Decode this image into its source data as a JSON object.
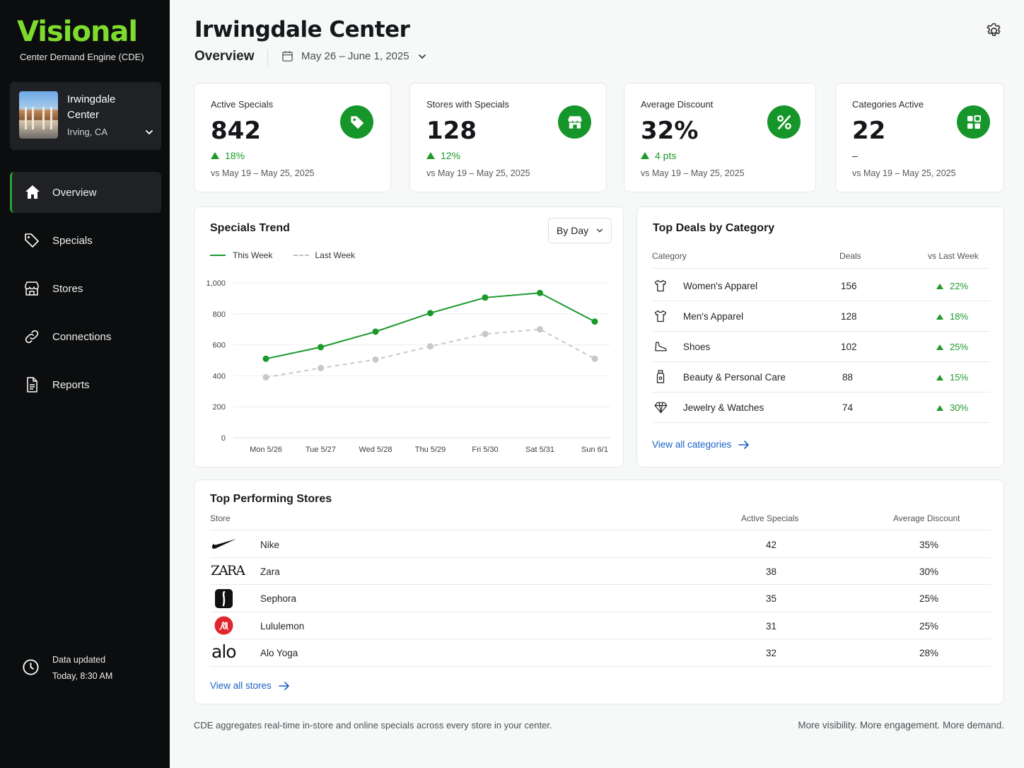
{
  "brand": {
    "name": "Visional",
    "subtitle": "Center Demand Engine (CDE)"
  },
  "center": {
    "name": "Irwingdale Center",
    "location": "Irving, CA"
  },
  "nav": [
    {
      "label": "Overview",
      "icon": "home-icon",
      "active": true
    },
    {
      "label": "Specials",
      "icon": "tag-icon",
      "active": false
    },
    {
      "label": "Stores",
      "icon": "store-icon",
      "active": false
    },
    {
      "label": "Connections",
      "icon": "link-icon",
      "active": false
    },
    {
      "label": "Reports",
      "icon": "document-icon",
      "active": false
    }
  ],
  "data_updated": {
    "label": "Data updated",
    "time": "Today, 8:30 AM"
  },
  "header": {
    "title": "Irwingdale Center",
    "subtitle": "Overview",
    "date_range": "May 26 – June 1, 2025"
  },
  "kpis": [
    {
      "label": "Active Specials",
      "value": "842",
      "change": "18%",
      "compare": "vs May 19 – May 25, 2025",
      "icon": "tag-icon"
    },
    {
      "label": "Stores with Specials",
      "value": "128",
      "change": "12%",
      "compare": "vs May 19 – May 25, 2025",
      "icon": "store-icon"
    },
    {
      "label": "Average Discount",
      "value": "32%",
      "change": "4 pts",
      "compare": "vs May 19 – May 25, 2025",
      "icon": "percent-icon"
    },
    {
      "label": "Categories Active",
      "value": "22",
      "change": "–",
      "compare": "vs May 19 – May 25, 2025",
      "icon": "grid-icon"
    }
  ],
  "trend": {
    "title": "Specials Trend",
    "period_select": "By Day",
    "legend_this": "This Week",
    "legend_last": "Last Week"
  },
  "chart_data": {
    "type": "line",
    "categories": [
      "Mon 5/26",
      "Tue 5/27",
      "Wed 5/28",
      "Thu 5/29",
      "Fri 5/30",
      "Sat 5/31",
      "Sun 6/1"
    ],
    "series": [
      {
        "name": "This Week",
        "values": [
          510,
          585,
          685,
          805,
          905,
          935,
          750
        ],
        "color": "#1a9a2b"
      },
      {
        "name": "Last Week",
        "values": [
          390,
          450,
          505,
          590,
          670,
          700,
          510
        ],
        "color": "#c8c8c8"
      }
    ],
    "yticks": [
      "0",
      "200",
      "400",
      "600",
      "800",
      "1,000"
    ],
    "ylim": [
      0,
      1000
    ],
    "grid": true,
    "legend": "top-left"
  },
  "deals": {
    "title": "Top Deals by Category",
    "headers": {
      "category": "Category",
      "deals": "Deals",
      "vs": "vs Last Week"
    },
    "rows": [
      {
        "category": "Women's Apparel",
        "deals": "156",
        "change": "22%",
        "icon": "shirt-icon"
      },
      {
        "category": "Men's Apparel",
        "deals": "128",
        "change": "18%",
        "icon": "shirt-icon"
      },
      {
        "category": "Shoes",
        "deals": "102",
        "change": "25%",
        "icon": "shoe-icon"
      },
      {
        "category": "Beauty & Personal Care",
        "deals": "88",
        "change": "15%",
        "icon": "bottle-icon"
      },
      {
        "category": "Jewelry & Watches",
        "deals": "74",
        "change": "30%",
        "icon": "diamond-icon"
      }
    ],
    "view_all": "View all categories"
  },
  "stores": {
    "title": "Top Performing Stores",
    "headers": {
      "store": "Store",
      "active": "Active Specials",
      "discount": "Average Discount"
    },
    "rows": [
      {
        "name": "Nike",
        "active": "42",
        "discount": "35%",
        "logo": "nike-logo"
      },
      {
        "name": "Zara",
        "active": "38",
        "discount": "30%",
        "logo": "zara-logo",
        "logo_text": "ZARA"
      },
      {
        "name": "Sephora",
        "active": "35",
        "discount": "25%",
        "logo": "sephora-logo"
      },
      {
        "name": "Lululemon",
        "active": "31",
        "discount": "25%",
        "logo": "lululemon-logo"
      },
      {
        "name": "Alo Yoga",
        "active": "32",
        "discount": "28%",
        "logo": "alo-logo",
        "logo_text": "alo"
      }
    ],
    "view_all": "View all stores"
  },
  "footer": {
    "left": "CDE aggregates real-time in-store and online specials across every store in your center.",
    "right": "More visibility. More engagement. More demand."
  },
  "colors": {
    "accent": "#16962a",
    "brand": "#7ddc2d",
    "link": "#1b62c4",
    "sidebar": "#0c0d0e"
  }
}
